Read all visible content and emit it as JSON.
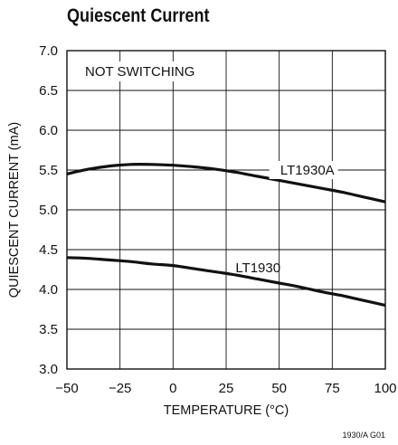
{
  "chart_data": {
    "type": "line",
    "title": "Quiescent Current",
    "xlabel": "TEMPERATURE (°C)",
    "ylabel": "QUIESCENT CURRENT (mA)",
    "annotation": "NOT SWITCHING",
    "figure_id": "1930/A G01",
    "xlim": [
      -50,
      100
    ],
    "ylim": [
      3.0,
      7.0
    ],
    "xticks": [
      -50,
      -25,
      0,
      25,
      50,
      75,
      100
    ],
    "yticks": [
      3.0,
      3.5,
      4.0,
      4.5,
      5.0,
      5.5,
      6.0,
      6.5,
      7.0
    ],
    "xtick_labels": [
      "−50",
      "−25",
      "0",
      "25",
      "50",
      "75",
      "100"
    ],
    "ytick_labels": [
      "3.0",
      "3.5",
      "4.0",
      "4.5",
      "5.0",
      "5.5",
      "6.0",
      "6.5",
      "7.0"
    ],
    "grid": true,
    "series": [
      {
        "name": "LT1930A",
        "x": [
          -50,
          -40,
          -30,
          -20,
          -10,
          0,
          10,
          20,
          30,
          40,
          50,
          60,
          70,
          80,
          90,
          100
        ],
        "y": [
          5.45,
          5.51,
          5.55,
          5.57,
          5.57,
          5.56,
          5.54,
          5.51,
          5.47,
          5.42,
          5.37,
          5.32,
          5.27,
          5.22,
          5.16,
          5.1
        ]
      },
      {
        "name": "LT1930",
        "x": [
          -50,
          -40,
          -30,
          -20,
          -10,
          0,
          10,
          20,
          30,
          40,
          50,
          60,
          70,
          80,
          90,
          100
        ],
        "y": [
          4.4,
          4.39,
          4.37,
          4.35,
          4.32,
          4.3,
          4.26,
          4.22,
          4.18,
          4.13,
          4.08,
          4.03,
          3.97,
          3.92,
          3.86,
          3.8
        ]
      }
    ]
  }
}
